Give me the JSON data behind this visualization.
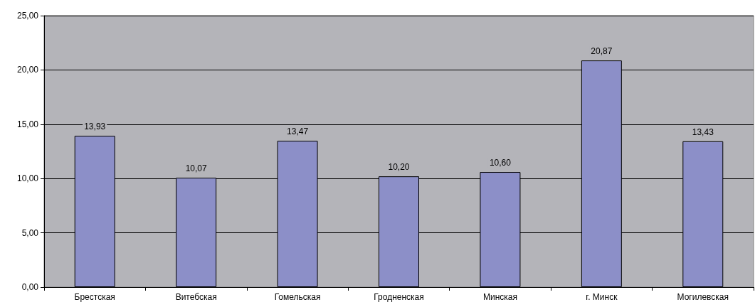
{
  "chart_data": {
    "type": "bar",
    "categories": [
      "Брестская",
      "Витебская",
      "Гомельская",
      "Гродненская",
      "Минская",
      "г. Минск",
      "Могилевская"
    ],
    "values": [
      13.93,
      10.07,
      13.47,
      10.2,
      10.6,
      20.87,
      13.43
    ],
    "value_labels": [
      "13,93",
      "10,07",
      "13,47",
      "10,20",
      "10,60",
      "20,87",
      "13,43"
    ],
    "color": "#8c8fc8",
    "ylim": [
      0,
      25
    ],
    "yticks": [
      {
        "value": 0,
        "label": "0,00"
      },
      {
        "value": 5,
        "label": "5,00"
      },
      {
        "value": 10,
        "label": "10,00"
      },
      {
        "value": 15,
        "label": "15,00"
      },
      {
        "value": 20,
        "label": "20,00"
      },
      {
        "value": 25,
        "label": "25,00"
      }
    ],
    "grid": "y"
  }
}
